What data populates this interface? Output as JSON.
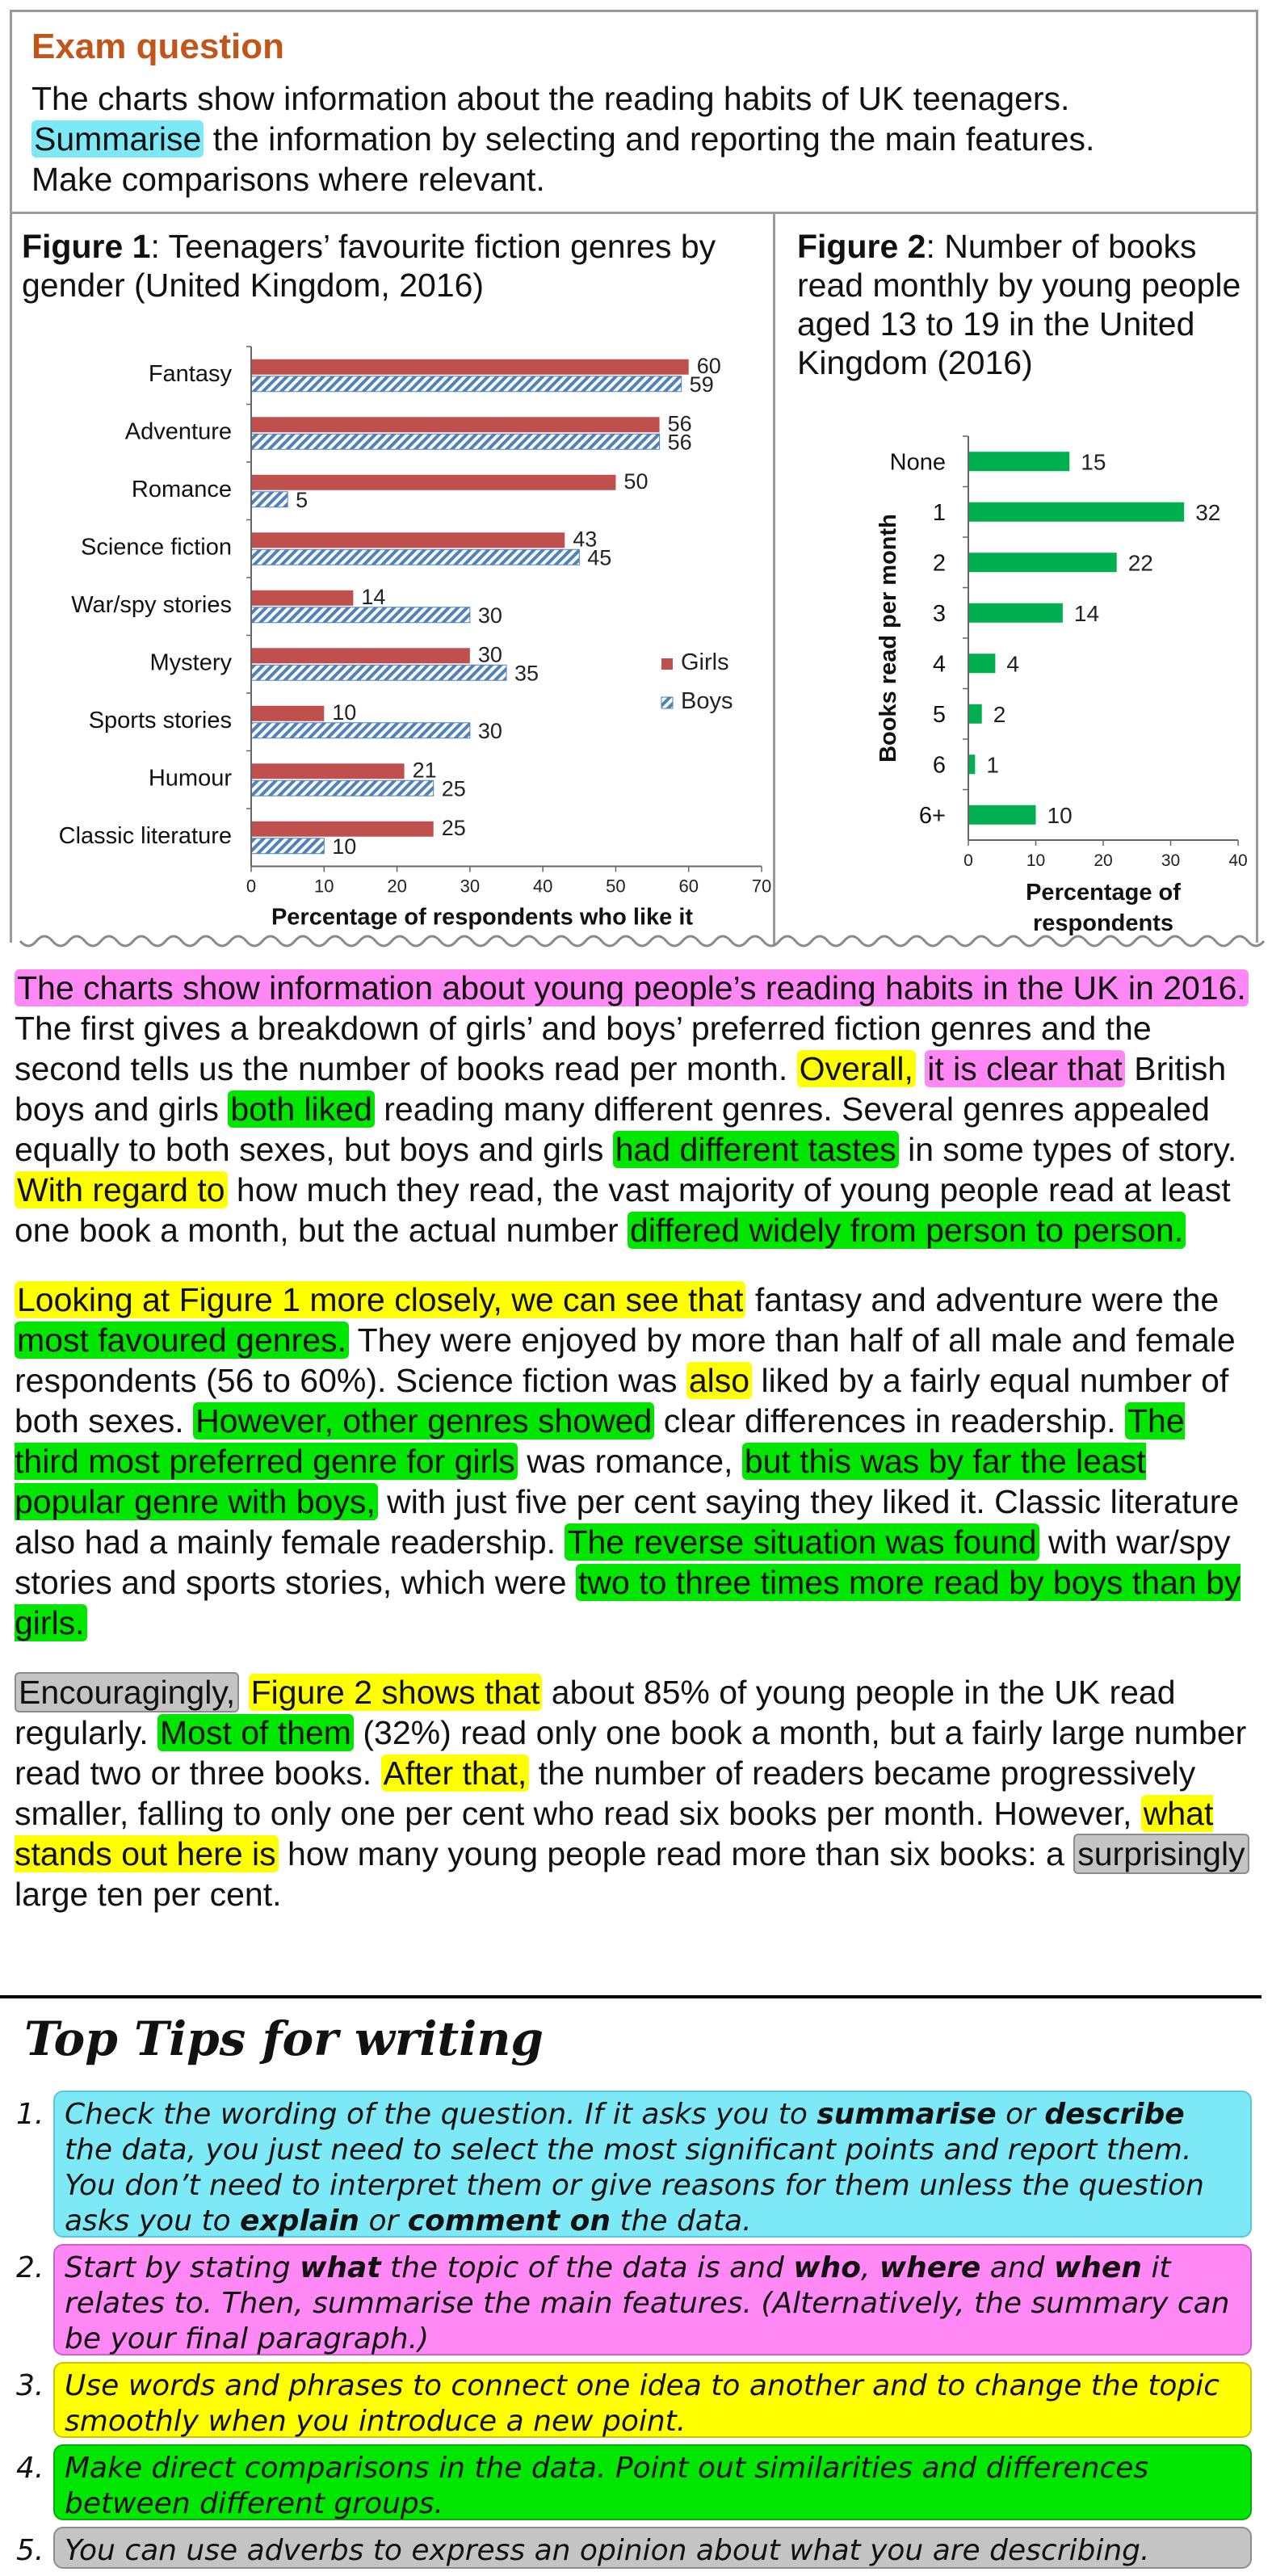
{
  "exam": {
    "title": "Exam question",
    "line1": "The charts show information about the reading habits of UK teenagers.",
    "summarise": "Summarise",
    "line2_rest": " the information by selecting and reporting the main features.",
    "line3": "Make comparisons where relevant."
  },
  "figure1": {
    "label": "Figure 1",
    "title_rest": ": Teenagers’ favourite fiction genres by gender (United Kingdom, 2016)"
  },
  "figure2": {
    "label": "Figure 2",
    "title_rest": ": Number of books read monthly by young people aged 13 to 19 in the United Kingdom (2016)"
  },
  "chart_data": [
    {
      "type": "bar",
      "orientation": "horizontal",
      "categories": [
        "Fantasy",
        "Adventure",
        "Romance",
        "Science fiction",
        "War/spy stories",
        "Mystery",
        "Sports stories",
        "Humour",
        "Classic literature"
      ],
      "series": [
        {
          "name": "Girls",
          "values": [
            60,
            56,
            50,
            43,
            14,
            30,
            10,
            21,
            25
          ],
          "color": "#c0504d"
        },
        {
          "name": "Boys",
          "values": [
            59,
            56,
            5,
            45,
            30,
            35,
            30,
            25,
            10
          ],
          "color": "#4f81bd"
        }
      ],
      "xlabel": "Percentage of respondents who like it",
      "xlim": [
        0,
        70
      ],
      "xticks": [
        0,
        10,
        20,
        30,
        40,
        50,
        60,
        70
      ],
      "legend_position": "right"
    },
    {
      "type": "bar",
      "orientation": "horizontal",
      "categories": [
        "None",
        "1",
        "2",
        "3",
        "4",
        "5",
        "6",
        "6+"
      ],
      "values": [
        15,
        32,
        22,
        14,
        4,
        2,
        1,
        10
      ],
      "color": "#00b050",
      "xlabel": "Percentage of respondents",
      "ylabel": "Books read per month",
      "xlim": [
        0,
        40
      ],
      "xticks": [
        0,
        10,
        20,
        30,
        40
      ]
    }
  ],
  "essay": {
    "p1": [
      {
        "t": "The charts show information about young people’s reading habits in the UK in 2016.",
        "h": "pink"
      },
      {
        "t": " The first gives a breakdown of girls’ and boys’ preferred fiction genres and the second tells us the number of books read per month. "
      },
      {
        "t": "Overall,",
        "h": "yellow"
      },
      {
        "t": " "
      },
      {
        "t": "it is clear that",
        "h": "pink"
      },
      {
        "t": " British boys and girls "
      },
      {
        "t": "both liked",
        "h": "green"
      },
      {
        "t": " reading many different genres. Several genres appealed equally to both sexes, but boys and girls "
      },
      {
        "t": "had different tastes",
        "h": "green"
      },
      {
        "t": " in some types of story. "
      },
      {
        "t": "With regard to",
        "h": "yellow"
      },
      {
        "t": " how much they read, the vast majority of young people read at least one book a month, but the actual number "
      },
      {
        "t": "differed widely from person to person.",
        "h": "green"
      }
    ],
    "p2": [
      {
        "t": "Looking at Figure 1 more closely, we can see that",
        "h": "yellow"
      },
      {
        "t": " fantasy and adventure were the "
      },
      {
        "t": "most favoured genres.",
        "h": "green"
      },
      {
        "t": " They were enjoyed by more than half of all male and female respondents (56 to 60%). Science fiction was "
      },
      {
        "t": "also",
        "h": "yellow"
      },
      {
        "t": " liked by a fairly equal number of both sexes. "
      },
      {
        "t": "However, other genres showed",
        "h": "green"
      },
      {
        "t": " clear differences in readership. "
      },
      {
        "t": "The third most preferred genre for girls",
        "h": "green"
      },
      {
        "t": " was romance, "
      },
      {
        "t": "but this was by far the least popular genre with boys,",
        "h": "green"
      },
      {
        "t": " with just five per cent saying they liked it. Classic literature also had a mainly female readership. "
      },
      {
        "t": "The reverse situation was found",
        "h": "green"
      },
      {
        "t": " with war/spy stories and sports stories, which were "
      },
      {
        "t": "two to three times more read by boys than by girls.",
        "h": "green"
      }
    ],
    "p3": [
      {
        "t": "Encouragingly,",
        "h": "grey"
      },
      {
        "t": " "
      },
      {
        "t": "Figure 2 shows that",
        "h": "yellow"
      },
      {
        "t": " about 85% of young people in the UK read regularly. "
      },
      {
        "t": "Most of them",
        "h": "green"
      },
      {
        "t": " (32%) read only one book a month, but a fairly large number read two or three books. "
      },
      {
        "t": "After that,",
        "h": "yellow"
      },
      {
        "t": " the number of readers became progressively smaller, falling to only one per cent who read six books per month. However, "
      },
      {
        "t": "what stands out here is",
        "h": "yellow"
      },
      {
        "t": " how many young people read more than six books: a "
      },
      {
        "t": "surprisingly",
        "h": "grey"
      },
      {
        "t": " large ten per cent."
      }
    ]
  },
  "tips": {
    "title": "Top Tips for writing",
    "items": [
      {
        "num": "1.",
        "parts": [
          {
            "t": "Check the wording of the question. If it asks you to "
          },
          {
            "t": "summarise",
            "b": true
          },
          {
            "t": " or "
          },
          {
            "t": "describe",
            "b": true
          },
          {
            "t": " the data, you just need to select the most significant points and report them. You don’t need to interpret them or give reasons for them unless the question asks you to "
          },
          {
            "t": "explain",
            "b": true
          },
          {
            "t": " or "
          },
          {
            "t": "comment on",
            "b": true
          },
          {
            "t": " the data."
          }
        ]
      },
      {
        "num": "2.",
        "parts": [
          {
            "t": "Start by stating "
          },
          {
            "t": "what",
            "b": true
          },
          {
            "t": " the topic of the data is and "
          },
          {
            "t": "who",
            "b": true
          },
          {
            "t": ", "
          },
          {
            "t": "where",
            "b": true
          },
          {
            "t": " and "
          },
          {
            "t": "when",
            "b": true
          },
          {
            "t": " it relates to. Then, summarise the main features. (Alternatively, the summary can be your final paragraph.)"
          }
        ]
      },
      {
        "num": "3.",
        "parts": [
          {
            "t": "Use words and phrases to connect one idea to another and to change the topic smoothly when you introduce a new point."
          }
        ]
      },
      {
        "num": "4.",
        "parts": [
          {
            "t": "Make direct comparisons in the data. Point out similarities and differences between different groups."
          }
        ]
      },
      {
        "num": "5.",
        "parts": [
          {
            "t": "You can use adverbs to express an opinion about what you are describing."
          }
        ]
      }
    ]
  }
}
